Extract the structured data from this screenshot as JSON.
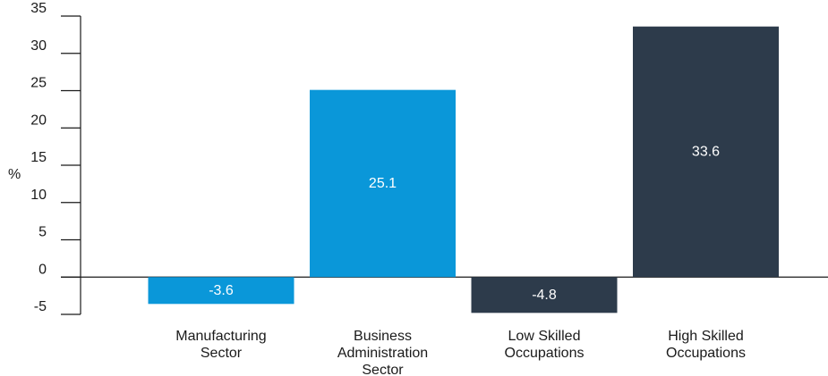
{
  "chart_data": {
    "type": "bar",
    "title": "",
    "xlabel": "",
    "ylabel": "%",
    "ylim": [
      -5,
      35
    ],
    "yticks": [
      35,
      30,
      25,
      20,
      15,
      10,
      5,
      0,
      -5
    ],
    "grid": false,
    "categories": [
      [
        "Manufacturing",
        "Sector"
      ],
      [
        "Business",
        "Administration",
        "Sector"
      ],
      [
        "Low Skilled",
        "Occupations"
      ],
      [
        "High Skilled",
        "Occupations"
      ]
    ],
    "values": [
      -3.6,
      25.1,
      -4.8,
      33.6
    ],
    "value_labels": [
      "-3.6",
      "25.1",
      "-4.8",
      "33.6"
    ],
    "colors": [
      "#0a97d9",
      "#0a97d9",
      "#2d3b4b",
      "#2d3b4b"
    ]
  }
}
